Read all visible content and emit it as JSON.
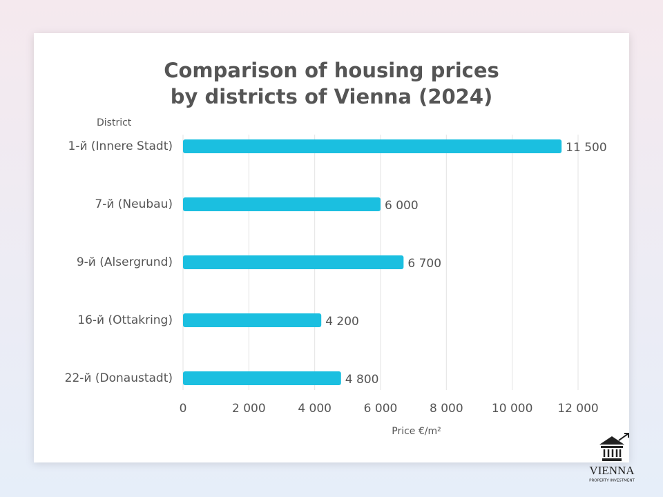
{
  "chart_data": {
    "type": "hbar",
    "title": "Comparison of housing prices",
    "subtitle": "by districts of Vienna (2024)",
    "y_label": "District",
    "x_label": "Price €/m²",
    "categories": [
      "1-й (Innere Stadt)",
      "7-й (Neubau)",
      "9-й (Alsergrund)",
      "16-й (Ottakring)",
      "22-й (Donaustadt)"
    ],
    "values": [
      11500,
      6000,
      6700,
      4200,
      4800
    ],
    "value_labels": [
      "11 500",
      "6 000",
      "6 700",
      "4 200",
      "4 800"
    ],
    "color": "#1bbfe0",
    "xlim": [
      0,
      12000
    ],
    "xticks": [
      0,
      {
        "value": 2000,
        "label": "2 000"
      },
      {
        "value": 4000,
        "label": "4 000"
      },
      {
        "value": 6000,
        "label": "6 000"
      },
      {
        "value": 8000,
        "label": "8 000"
      },
      {
        "value": 10000,
        "label": "10 000"
      },
      {
        "value": 12000,
        "label": "12 000"
      }
    ],
    "grid": true
  },
  "logo": {
    "name": "VIENNA",
    "tagline": "PROPERTY INVESTMENT"
  }
}
